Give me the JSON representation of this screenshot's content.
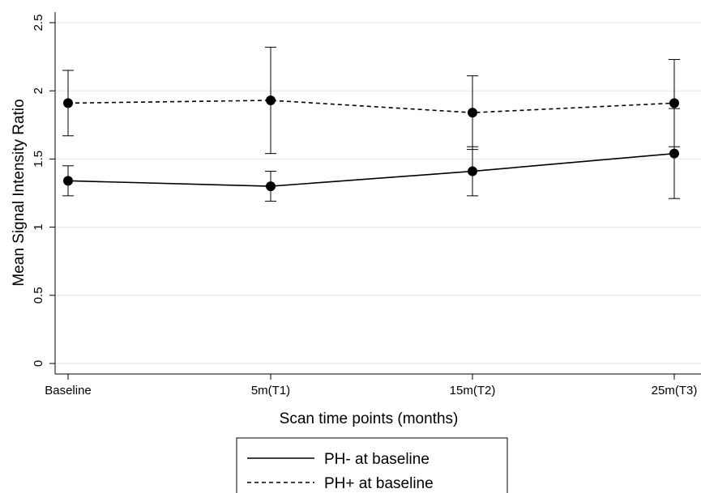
{
  "chart_data": {
    "type": "line",
    "title": "",
    "xlabel": "Scan time points (months)",
    "ylabel": "Mean Signal Intensity Ratio",
    "categories": [
      "Baseline",
      "5m(T1)",
      "15m(T2)",
      "25m(T3)"
    ],
    "ylim": [
      0,
      2.5
    ],
    "yticks": [
      "0",
      "0.5",
      "1",
      "1.5",
      "2",
      "2.5"
    ],
    "grid": "horizontal",
    "legend_position": "bottom",
    "series": [
      {
        "name": "PH- at baseline",
        "line_style": "solid",
        "values": [
          1.34,
          1.3,
          1.41,
          1.54
        ],
        "error_low": [
          1.23,
          1.19,
          1.23,
          1.21
        ],
        "error_high": [
          1.45,
          1.41,
          1.59,
          1.87
        ]
      },
      {
        "name": "PH+ at baseline",
        "line_style": "dashed",
        "values": [
          1.91,
          1.93,
          1.84,
          1.91
        ],
        "error_low": [
          1.67,
          1.54,
          1.57,
          1.59
        ],
        "error_high": [
          2.15,
          2.32,
          2.11,
          2.23
        ]
      }
    ],
    "colors": {
      "line": "#000000",
      "grid": "#e6e6e6",
      "background": "#ffffff"
    }
  }
}
